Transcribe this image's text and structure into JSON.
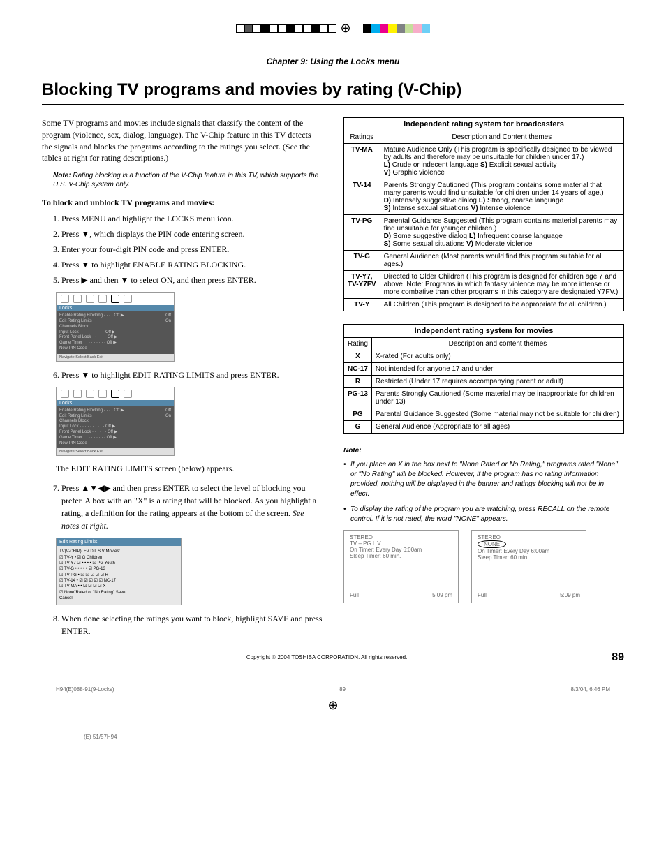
{
  "printMarks": {
    "grayscale": [
      "#ffffff",
      "#555555",
      "#ffffff",
      "#000000",
      "#ffffff",
      "#ffffff",
      "#000000",
      "#ffffff",
      "#ffffff",
      "#000000",
      "#ffffff",
      "#ffffff"
    ],
    "colors": [
      "#ffffff",
      "#000000",
      "#00aeef",
      "#ec008c",
      "#fff200",
      "#808285",
      "#c4df9b",
      "#f7adc9",
      "#6dcff6"
    ]
  },
  "chapter": "Chapter 9: Using the Locks menu",
  "title": "Blocking TV programs and movies by rating (V-Chip)",
  "intro": "Some TV programs and movies include signals that classify the content of the program (violence, sex, dialog, language). The V-Chip feature in this TV detects the signals and blocks the programs according to the ratings you select. (See the tables at right for rating descriptions.)",
  "note": {
    "label": "Note:",
    "text": " Rating blocking is a function of the V-Chip feature in this TV, which supports the U.S. V-Chip system only."
  },
  "stepsHead": "To block and unblock TV programs and movies:",
  "steps": {
    "s1": "Press MENU and highlight the LOCKS menu icon.",
    "s2": "Press ▼, which displays the PIN code entering screen.",
    "s3": "Enter your four-digit PIN code and press ENTER.",
    "s4": "Press ▼ to highlight ENABLE RATING BLOCKING.",
    "s5": "Press ▶ and then ▼ to select ON, and then press ENTER.",
    "s6": "Press ▼ to highlight EDIT RATING LIMITS and press ENTER.",
    "s6after": "The EDIT RATING LIMITS screen (below) appears.",
    "s7a": "Press ▲▼◀▶ and then press ENTER to select the level of blocking you prefer. A box with an \"X\" is a rating that will be blocked. As you highlight a rating, a definition for the rating appears at the bottom of the screen. ",
    "s7b": "See notes at right.",
    "s8": "When done selecting the ratings you want to block, highlight SAVE and press ENTER."
  },
  "osd": {
    "title": "Locks",
    "lines": [
      {
        "l": "Enable Rating Blocking · · · · Off ▶",
        "r": "Off"
      },
      {
        "l": "Edit Rating Limits",
        "r": "On"
      },
      {
        "l": "Channels Block",
        "r": ""
      },
      {
        "l": "Input Lock · · · · · · · · · · Off ▶",
        "r": ""
      },
      {
        "l": "Front Panel Lock · · · · · · Off ▶",
        "r": ""
      },
      {
        "l": "Game Timer · · · · · · · · · Off ▶",
        "r": ""
      },
      {
        "l": "New PIN Code",
        "r": ""
      }
    ],
    "nav": "Navigate    Select    Back    Exit"
  },
  "editBox": {
    "title": "Edit Rating Limits",
    "head": "TV(V-CHIP):    FV  D   L   S   V        Movies:",
    "rows": [
      "☑ TV-Y           •                              ☑ G          Children",
      "☑ TV-Y7        ☑   •    •    •    •        ☑ PG         Youth",
      "☑ TV-G           •    •    •    •    •        ☑ PG-13",
      "☑ TV-PG          •   ☑  ☑  ☑  ☑       ☑ R",
      "☑ TV-14          •   ☑  ☑  ☑  ☑       ☑ NC-17",
      "☑ TV-MA          •    •   ☑  ☑  ☑       ☑ X",
      "        ☑ None\"Rated or \"No Rating\"                    Save",
      "                                                                  Cancel"
    ]
  },
  "tbl1": {
    "title": "Independent rating system for broadcasters",
    "h1": "Ratings",
    "h2": "Description and Content themes",
    "rows": [
      {
        "r": "TV-MA",
        "d": "Mature Audience Only (This program is specifically designed to be viewed by adults and therefore may be unsuitable for children under 17.)\nL) Crude or indecent language  S) Explicit sexual activity\nV) Graphic violence"
      },
      {
        "r": "TV-14",
        "d": "Parents Strongly Cautioned (This program contains some material that many parents would find unsuitable for children under 14 years of age.)\nD) Intensely suggestive dialog  L) Strong, coarse language\nS) Intense sexual situations  V) Intense violence"
      },
      {
        "r": "TV-PG",
        "d": "Parental Guidance Suggested (This program contains material parents may find unsuitable for younger children.)\nD) Some suggestive dialog  L) Infrequent coarse language\nS) Some sexual situations  V) Moderate violence"
      },
      {
        "r": "TV-G",
        "d": "General Audience (Most parents would find this program suitable for all ages.)"
      },
      {
        "r": "TV-Y7,\nTV-Y7FV",
        "d": "Directed to Older Children (This program is designed for children age 7 and above. Note: Programs in which fantasy violence may be more intense or more combative than other programs in this category are designated Y7FV.)"
      },
      {
        "r": "TV-Y",
        "d": "All Children (This program is designed to be appropriate for all children.)"
      }
    ]
  },
  "tbl2": {
    "title": "Independent rating system for movies",
    "h1": "Rating",
    "h2": "Description and content themes",
    "rows": [
      {
        "r": "X",
        "d": "X-rated (For adults only)"
      },
      {
        "r": "NC-17",
        "d": "Not intended for anyone 17 and under"
      },
      {
        "r": "R",
        "d": "Restricted (Under 17 requires accompanying parent or adult)"
      },
      {
        "r": "PG-13",
        "d": "Parents Strongly Cautioned (Some material may be inappropriate for children under 13)"
      },
      {
        "r": "PG",
        "d": "Parental Guidance Suggested (Some material may not be suitable for children)"
      },
      {
        "r": "G",
        "d": "General Audience (Appropriate for all ages)"
      }
    ]
  },
  "rightNote": {
    "label": "Note:",
    "i1": "If you place an X in the box next to \"None Rated or No Rating,\" programs rated \"None\" or \"No Rating\" will be blocked. However, if the program has no rating information provided, nothing will be displayed in the banner and ratings blocking will not be in effect.",
    "i2": "To display the rating of the program you are watching, press RECALL on the remote control. If it is not rated, the word \"NONE\" appears."
  },
  "tvBoxA": {
    "l1": "STEREO",
    "l2": "TV – PG        L        V",
    "l3": "On Timer: Every Day 6:00am",
    "l4": "Sleep Timer: 60 min.",
    "bl": "Full",
    "br": "5:09 pm"
  },
  "tvBoxB": {
    "l1": "STEREO",
    "none": "NONE",
    "l3": "On Timer: Every Day 6:00am",
    "l4": "Sleep Timer: 60 min.",
    "bl": "Full",
    "br": "5:09 pm"
  },
  "copyright": "Copyright © 2004 TOSHIBA CORPORATION. All rights reserved.",
  "pageNum": "89",
  "footer": {
    "file": "H94(E)088-91(9-Locks)",
    "pg": "89",
    "date": "8/3/04, 6:46 PM",
    "crop": "(E) 51/57H94"
  },
  "colors": {
    "accent": "#5588aa",
    "gray": "#e0e0e0",
    "darkgray": "#555555"
  }
}
